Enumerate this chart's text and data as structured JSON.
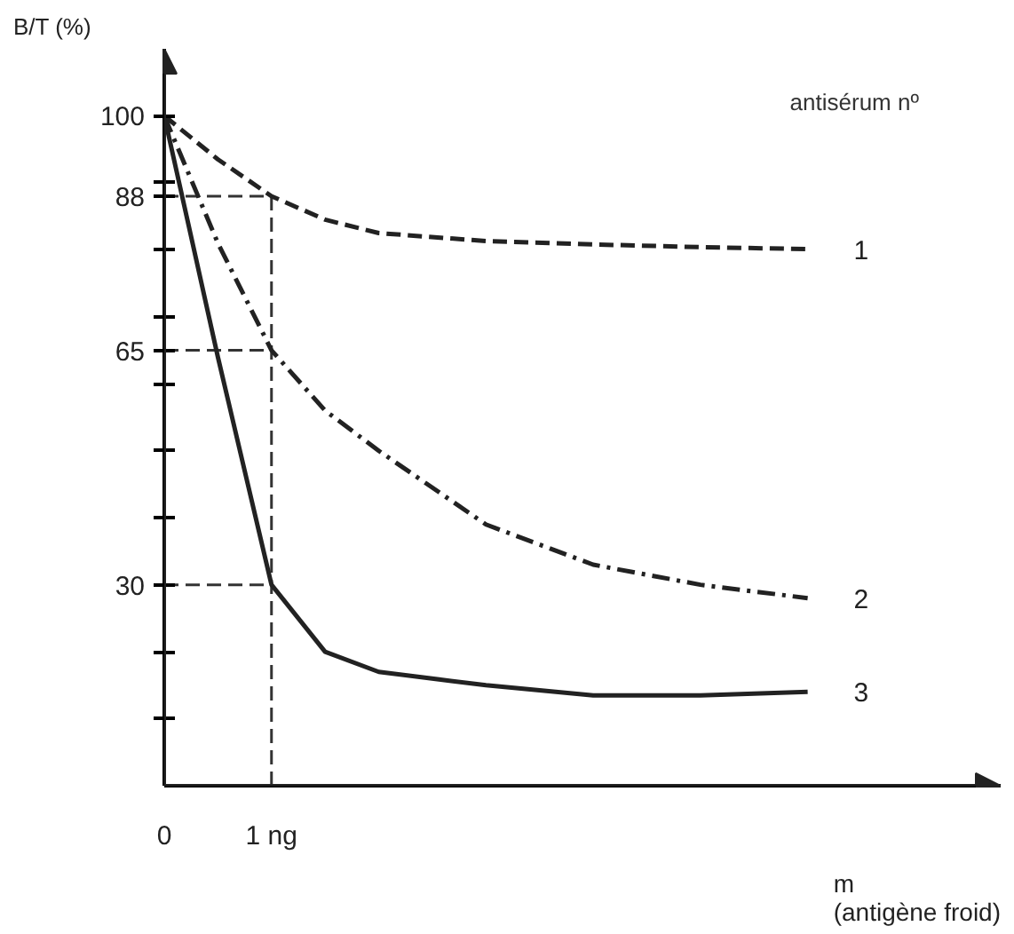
{
  "chart_data": {
    "type": "line",
    "xlabel": "m\n(antigène froid)",
    "ylabel": "B/T (%)",
    "annotations": [
      "antisérum nº"
    ],
    "x": [
      0,
      0.5,
      1,
      1.5,
      2,
      3,
      4,
      5,
      6
    ],
    "series": [
      {
        "name": "1",
        "color": "#222222",
        "line_style": "dashed",
        "values": [
          100,
          93.5,
          88,
          84.5,
          82.5,
          81.3,
          80.8,
          80.4,
          80.1
        ]
      },
      {
        "name": "2",
        "color": "#222222",
        "line_style": "dashdot",
        "values": [
          100,
          81,
          65,
          56,
          50,
          39,
          33,
          30,
          28
        ]
      },
      {
        "name": "3",
        "color": "#222222",
        "line_style": "solid",
        "values": [
          100,
          64,
          30,
          20,
          17,
          15,
          13.5,
          13.5,
          14
        ]
      }
    ],
    "xlim": [
      0,
      7.8
    ],
    "ylim": [
      0,
      110
    ],
    "xticks": [
      0,
      {
        "value": 1,
        "label": "1 ng"
      }
    ],
    "yticks": [
      {
        "value": 10,
        "label": null
      },
      {
        "value": 20,
        "label": null
      },
      30,
      {
        "value": 40,
        "label": null
      },
      {
        "value": 50,
        "label": null
      },
      {
        "value": 60,
        "label": null
      },
      65,
      {
        "value": 70,
        "label": null
      },
      {
        "value": 80,
        "label": null
      },
      88,
      {
        "value": 90,
        "label": null
      },
      100
    ],
    "ref_lines": [
      {
        "axis": "x",
        "value": 1,
        "label": null,
        "line_style": "dashed"
      },
      {
        "axis": "y",
        "value": 88,
        "label": null,
        "line_style": "dashed"
      },
      {
        "axis": "y",
        "value": 65,
        "label": null,
        "line_style": "dashed"
      },
      {
        "axis": "y",
        "value": 30,
        "label": null,
        "line_style": "dashed"
      }
    ],
    "grid": false,
    "marker": "none"
  }
}
